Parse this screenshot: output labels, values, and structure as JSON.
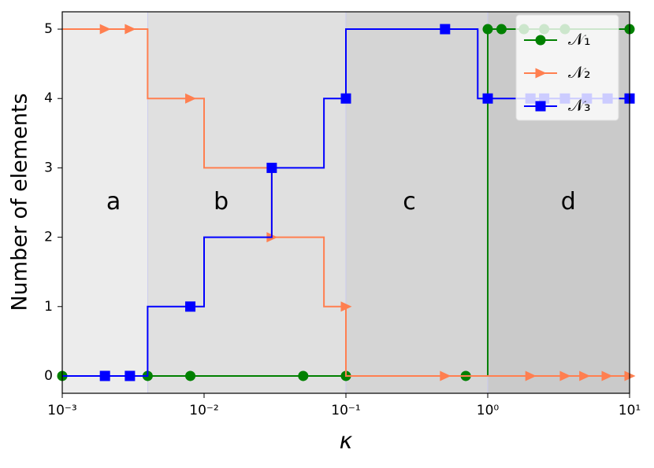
{
  "chart_data": {
    "type": "step",
    "xlabel": "κ",
    "ylabel": "Number of elements",
    "xscale": "log",
    "xlim": [
      0.001,
      10
    ],
    "ylim": [
      -0.25,
      5.25
    ],
    "xticks": [
      {
        "value": 0.001,
        "label": "10⁻³"
      },
      {
        "value": 0.01,
        "label": "10⁻²"
      },
      {
        "value": 0.1,
        "label": "10⁻¹"
      },
      {
        "value": 1,
        "label": "10⁰"
      },
      {
        "value": 10,
        "label": "10¹"
      }
    ],
    "yticks": [
      0,
      1,
      2,
      3,
      4,
      5
    ],
    "legend": "upper right",
    "regions": [
      {
        "label": "a",
        "x": [
          0.001,
          0.004
        ],
        "label_x": 0.0023,
        "label_y": 2.5,
        "color": "#ececec"
      },
      {
        "label": "b",
        "x": [
          0.004,
          0.1
        ],
        "label_x": 0.0132,
        "label_y": 2.5,
        "color": "#e0e0e0"
      },
      {
        "label": "c",
        "x": [
          0.1,
          1
        ],
        "label_x": 0.28,
        "label_y": 2.5,
        "color": "#d5d5d5"
      },
      {
        "label": "d",
        "x": [
          1,
          10
        ],
        "label_x": 3.7,
        "label_y": 2.5,
        "color": "#cacaca"
      }
    ],
    "series": [
      {
        "name": "𝒩₁",
        "color": "#008000",
        "marker": "o",
        "x": [
          0.001,
          1,
          10
        ],
        "values": [
          0,
          5,
          5
        ],
        "markers": {
          "x": [
            0.001,
            0.004,
            0.008,
            0.05,
            0.1,
            0.7,
            1,
            1.25,
            1.8,
            2.5,
            3.5,
            10
          ],
          "values": [
            0,
            0,
            0,
            0,
            0,
            0,
            5,
            5,
            5,
            5,
            5,
            5
          ]
        }
      },
      {
        "name": "𝒩₂",
        "color": "#ff7f50",
        "marker": ">",
        "x": [
          0.001,
          0.004,
          0.01,
          0.03,
          0.07,
          0.1,
          10
        ],
        "values": [
          5,
          4,
          3,
          2,
          1,
          0,
          0
        ],
        "markers": {
          "x": [
            0.002,
            0.003,
            0.008,
            0.03,
            0.1,
            0.5,
            2,
            3.5,
            4.8,
            6.9,
            10
          ],
          "values": [
            5,
            5,
            4,
            2,
            1,
            0,
            0,
            0,
            0,
            0,
            0
          ]
        }
      },
      {
        "name": "𝒩₃",
        "color": "#0000ff",
        "marker": "s",
        "x": [
          0.001,
          0.004,
          0.01,
          0.03,
          0.07,
          0.1,
          0.85,
          10
        ],
        "values": [
          0,
          1,
          2,
          3,
          4,
          5,
          4,
          4
        ],
        "markers": {
          "x": [
            0.002,
            0.003,
            0.008,
            0.03,
            0.1,
            0.5,
            1,
            2,
            2.5,
            3.5,
            5,
            7,
            10
          ],
          "values": [
            0,
            0,
            1,
            3,
            4,
            5,
            4,
            4,
            4,
            4,
            4,
            4,
            4
          ]
        }
      }
    ]
  }
}
